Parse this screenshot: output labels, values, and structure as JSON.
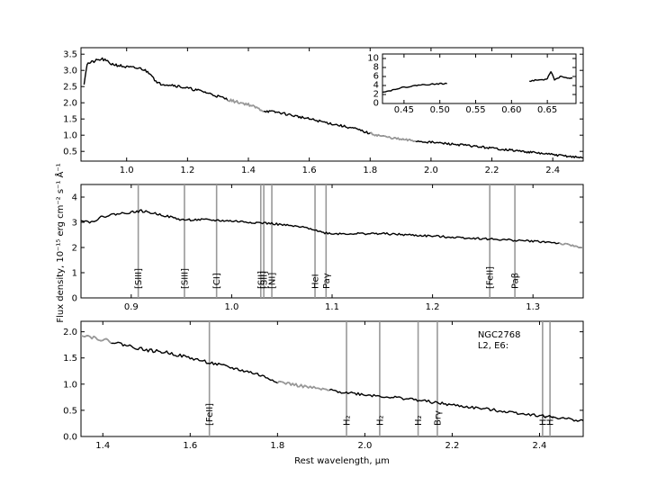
{
  "figure": {
    "ylabel": "Flux density, 10⁻¹⁵ erg cm⁻² s⁻¹ Å⁻¹",
    "xlabel": "Rest wavelength, μm"
  },
  "chart_data": [
    {
      "id": "full",
      "type": "line",
      "xlim": [
        0.85,
        2.5
      ],
      "ylim": [
        0.2,
        3.7
      ],
      "xticks": [
        "1.0",
        "1.2",
        "1.4",
        "1.6",
        "1.8",
        "2.0",
        "2.2",
        "2.4"
      ],
      "yticks": [
        "0.5",
        "1.0",
        "1.5",
        "2.0",
        "2.5",
        "3.0",
        "3.5"
      ],
      "spectrum": [
        [
          0.86,
          2.6
        ],
        [
          0.87,
          3.2
        ],
        [
          0.9,
          3.3
        ],
        [
          0.92,
          3.35
        ],
        [
          0.95,
          3.2
        ],
        [
          1.0,
          3.1
        ],
        [
          1.05,
          3.05
        ],
        [
          1.08,
          2.9
        ],
        [
          1.1,
          2.6
        ],
        [
          1.15,
          2.55
        ],
        [
          1.2,
          2.45
        ],
        [
          1.25,
          2.35
        ],
        [
          1.3,
          2.2
        ],
        [
          1.35,
          2.05
        ],
        [
          1.4,
          1.95
        ],
        [
          1.45,
          1.75
        ],
        [
          1.5,
          1.7
        ],
        [
          1.55,
          1.6
        ],
        [
          1.6,
          1.5
        ],
        [
          1.65,
          1.4
        ],
        [
          1.7,
          1.3
        ],
        [
          1.75,
          1.2
        ],
        [
          1.8,
          1.05
        ],
        [
          1.85,
          0.95
        ],
        [
          1.9,
          0.87
        ],
        [
          1.95,
          0.82
        ],
        [
          2.0,
          0.78
        ],
        [
          2.05,
          0.74
        ],
        [
          2.1,
          0.7
        ],
        [
          2.15,
          0.65
        ],
        [
          2.2,
          0.6
        ],
        [
          2.25,
          0.55
        ],
        [
          2.3,
          0.5
        ],
        [
          2.35,
          0.45
        ],
        [
          2.4,
          0.4
        ],
        [
          2.45,
          0.35
        ],
        [
          2.5,
          0.3
        ]
      ],
      "gray_ranges": [
        [
          1.33,
          1.45
        ],
        [
          1.8,
          1.95
        ]
      ]
    },
    {
      "id": "inset",
      "type": "line",
      "xlim": [
        0.42,
        0.69
      ],
      "ylim": [
        0,
        11
      ],
      "xticks": [
        "0.45",
        "0.50",
        "0.55",
        "0.60",
        "0.65"
      ],
      "yticks": [
        "0",
        "2",
        "4",
        "6",
        "8",
        "10"
      ],
      "segments": [
        [
          [
            0.42,
            2.6
          ],
          [
            0.43,
            2.8
          ],
          [
            0.44,
            3.3
          ],
          [
            0.45,
            3.6
          ],
          [
            0.46,
            3.8
          ],
          [
            0.47,
            4.1
          ],
          [
            0.48,
            4.2
          ],
          [
            0.49,
            4.3
          ],
          [
            0.5,
            4.4
          ],
          [
            0.51,
            4.4
          ]
        ],
        [
          [
            0.625,
            5.0
          ],
          [
            0.635,
            5.2
          ],
          [
            0.645,
            5.3
          ],
          [
            0.65,
            5.6
          ],
          [
            0.655,
            7.2
          ],
          [
            0.66,
            5.3
          ],
          [
            0.67,
            6.1
          ],
          [
            0.68,
            5.5
          ],
          [
            0.685,
            5.6
          ]
        ]
      ]
    },
    {
      "id": "zoom1",
      "type": "line",
      "xlim": [
        0.85,
        1.35
      ],
      "ylim": [
        0,
        4.5
      ],
      "xticks": [
        "0.9",
        "1.0",
        "1.1",
        "1.2",
        "1.3"
      ],
      "yticks": [
        "0",
        "1",
        "2",
        "3",
        "4"
      ],
      "spectrum": [
        [
          0.85,
          3.1
        ],
        [
          0.86,
          3.0
        ],
        [
          0.87,
          3.2
        ],
        [
          0.88,
          3.3
        ],
        [
          0.9,
          3.4
        ],
        [
          0.91,
          3.45
        ],
        [
          0.93,
          3.3
        ],
        [
          0.95,
          3.1
        ],
        [
          0.97,
          3.1
        ],
        [
          1.0,
          3.05
        ],
        [
          1.02,
          3.0
        ],
        [
          1.04,
          2.95
        ],
        [
          1.06,
          2.85
        ],
        [
          1.08,
          2.75
        ],
        [
          1.09,
          2.6
        ],
        [
          1.1,
          2.55
        ],
        [
          1.15,
          2.55
        ],
        [
          1.2,
          2.45
        ],
        [
          1.25,
          2.35
        ],
        [
          1.3,
          2.25
        ],
        [
          1.32,
          2.2
        ],
        [
          1.35,
          2.0
        ]
      ],
      "gray_ranges": [
        [
          1.325,
          1.35
        ]
      ],
      "lines": [
        {
          "x": 0.907,
          "label": "[SIII]"
        },
        {
          "x": 0.953,
          "label": "[SIII]"
        },
        {
          "x": 0.985,
          "label": "[CI]"
        },
        {
          "x": 1.029,
          "label": "[SII]"
        },
        {
          "x": 1.032,
          "label": "[SII]"
        },
        {
          "x": 1.04,
          "label": "[NI]"
        },
        {
          "x": 1.083,
          "label": "HeI"
        },
        {
          "x": 1.094,
          "label": "Paγ"
        },
        {
          "x": 1.257,
          "label": "[FeII]"
        },
        {
          "x": 1.282,
          "label": "Paβ"
        }
      ]
    },
    {
      "id": "zoom2",
      "type": "line",
      "xlim": [
        1.35,
        2.5
      ],
      "ylim": [
        0,
        2.2
      ],
      "xticks": [
        "1.4",
        "1.6",
        "1.8",
        "2.0",
        "2.2",
        "2.4"
      ],
      "yticks": [
        "0.0",
        "0.5",
        "1.0",
        "1.5",
        "2.0"
      ],
      "spectrum": [
        [
          1.35,
          1.95
        ],
        [
          1.4,
          1.85
        ],
        [
          1.45,
          1.75
        ],
        [
          1.5,
          1.65
        ],
        [
          1.55,
          1.6
        ],
        [
          1.6,
          1.5
        ],
        [
          1.65,
          1.4
        ],
        [
          1.7,
          1.3
        ],
        [
          1.75,
          1.2
        ],
        [
          1.8,
          1.05
        ],
        [
          1.85,
          0.97
        ],
        [
          1.9,
          0.9
        ],
        [
          1.95,
          0.85
        ],
        [
          2.0,
          0.8
        ],
        [
          2.05,
          0.76
        ],
        [
          2.1,
          0.72
        ],
        [
          2.15,
          0.66
        ],
        [
          2.2,
          0.6
        ],
        [
          2.25,
          0.55
        ],
        [
          2.3,
          0.5
        ],
        [
          2.35,
          0.45
        ],
        [
          2.4,
          0.4
        ],
        [
          2.45,
          0.35
        ],
        [
          2.5,
          0.3
        ]
      ],
      "gray_ranges": [
        [
          1.35,
          1.42
        ],
        [
          1.8,
          1.92
        ]
      ],
      "lines": [
        {
          "x": 1.644,
          "label": "[FeII]"
        },
        {
          "x": 1.958,
          "label": "H₂"
        },
        {
          "x": 2.034,
          "label": "H₂"
        },
        {
          "x": 2.122,
          "label": "H₂"
        },
        {
          "x": 2.166,
          "label": "Brγ"
        },
        {
          "x": 2.407,
          "label": "H₂"
        },
        {
          "x": 2.424,
          "label": "H₂"
        }
      ],
      "annotation": [
        "NGC2768",
        "L2,  E6:"
      ]
    }
  ]
}
